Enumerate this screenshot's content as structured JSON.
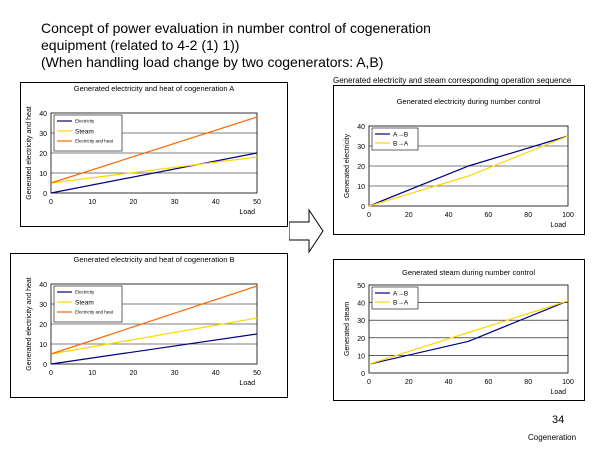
{
  "title_lines": [
    "Concept of power evaluation in number control of cogeneration",
    "equipment (related to 4-2 (1) 1))",
    "(When handling load change by two cogenerators: A,B)"
  ],
  "right_heading": "Generated electricity and steam corresponding  operation sequence",
  "page_number": "34",
  "footer": "Cogeneration",
  "colors": {
    "electricity": "#000080",
    "steam": "#ffd700",
    "elec_heat": "#ff6600",
    "AB": "#000080",
    "BA": "#ffd700"
  },
  "chart_data": [
    {
      "id": "chart-a",
      "type": "line",
      "title": "Generated electricity and heat of cogeneration  A",
      "xlabel": "Load",
      "ylabel": "Generated electricity and heat",
      "xlim": [
        0,
        50
      ],
      "ylim": [
        0,
        40
      ],
      "xticks": [
        "0",
        "10",
        "20",
        "30",
        "40",
        "50"
      ],
      "yticks": [
        "0",
        "10",
        "20",
        "30",
        "40"
      ],
      "grid": "horizontal",
      "legend": "top-left",
      "series": [
        {
          "name": "Electricity",
          "color": "#000080",
          "x": [
            0,
            50
          ],
          "y": [
            0,
            20
          ]
        },
        {
          "name": "Steam",
          "color": "#ffd700",
          "x": [
            0,
            50
          ],
          "y": [
            5,
            18
          ]
        },
        {
          "name": "Electricity and heat",
          "color": "#ff6600",
          "x": [
            0,
            50
          ],
          "y": [
            5,
            38
          ]
        }
      ]
    },
    {
      "id": "chart-b",
      "type": "line",
      "title": "Generated electricity and heat of cogeneration  B",
      "xlabel": "Load",
      "ylabel": "Generated electricity and heat",
      "xlim": [
        0,
        50
      ],
      "ylim": [
        0,
        40
      ],
      "xticks": [
        "0",
        "10",
        "20",
        "30",
        "40",
        "50"
      ],
      "yticks": [
        "0",
        "10",
        "20",
        "30",
        "40"
      ],
      "grid": "horizontal",
      "legend": "top-left",
      "series": [
        {
          "name": "Electricity",
          "color": "#000080",
          "x": [
            0,
            50
          ],
          "y": [
            0,
            15
          ]
        },
        {
          "name": "Steam",
          "color": "#ffd700",
          "x": [
            0,
            50
          ],
          "y": [
            5,
            23
          ]
        },
        {
          "name": "Electricity and heat",
          "color": "#ff6600",
          "x": [
            0,
            50
          ],
          "y": [
            5,
            39
          ]
        }
      ]
    },
    {
      "id": "chart-elec",
      "type": "line",
      "title": "Generated electricity during number control",
      "xlabel": "Load",
      "ylabel": "Generated electricity",
      "xlim": [
        0,
        100
      ],
      "ylim": [
        0,
        40
      ],
      "xticks": [
        "0",
        "20",
        "40",
        "60",
        "80",
        "100"
      ],
      "yticks": [
        "0",
        "10",
        "20",
        "30",
        "40"
      ],
      "grid": "horizontal",
      "legend": "top-left",
      "series": [
        {
          "name": "A→B",
          "color": "#000080",
          "x": [
            0,
            50,
            100
          ],
          "y": [
            0,
            20,
            35
          ]
        },
        {
          "name": "B→A",
          "color": "#ffd700",
          "x": [
            0,
            50,
            100
          ],
          "y": [
            0,
            15,
            35
          ]
        }
      ]
    },
    {
      "id": "chart-steam",
      "type": "line",
      "title": "Generated steam during number control",
      "xlabel": "Load",
      "ylabel": "Generated steam",
      "xlim": [
        0,
        100
      ],
      "ylim": [
        0,
        50
      ],
      "xticks": [
        "0",
        "20",
        "40",
        "60",
        "80",
        "100"
      ],
      "yticks": [
        "0",
        "10",
        "20",
        "30",
        "40",
        "50"
      ],
      "grid": "horizontal",
      "legend": "top-left",
      "series": [
        {
          "name": "A→B",
          "color": "#000080",
          "x": [
            0,
            50,
            100
          ],
          "y": [
            5,
            18,
            41
          ]
        },
        {
          "name": "B→A",
          "color": "#ffd700",
          "x": [
            0,
            50,
            100
          ],
          "y": [
            5,
            23,
            41
          ]
        }
      ]
    }
  ]
}
